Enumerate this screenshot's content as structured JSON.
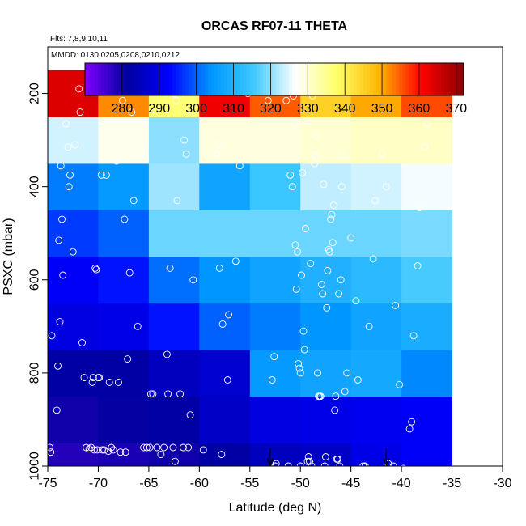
{
  "chart_data": {
    "type": "heatmap",
    "title": "ORCAS RF07-11 THETA",
    "flights_note": "Flts: 7,8,9,10,11",
    "dates_note": "MMDD: 0130,0205,0208,0210,0212",
    "xlabel": "Latitude (deg N)",
    "ylabel": "PSXC (mbar)",
    "xlim": [
      -75,
      -30
    ],
    "ylim": [
      1000,
      100
    ],
    "x_ticks": [
      -75,
      -70,
      -65,
      -60,
      -55,
      -50,
      -45,
      -40,
      -35,
      -30
    ],
    "y_ticks": [
      200,
      400,
      600,
      800,
      1000
    ],
    "colorbar": {
      "range": [
        270,
        372
      ],
      "ticks": [
        280,
        290,
        300,
        310,
        320,
        330,
        340,
        350,
        360,
        370
      ],
      "colors": [
        "#7f00ff",
        "#00009f",
        "#0000ff",
        "#0096ff",
        "#3cc8ff",
        "#ffffff",
        "#ffff66",
        "#ffb400",
        "#ff0000",
        "#8b0000"
      ]
    },
    "lat_bins": [
      -75,
      -70,
      -65,
      -60,
      -55,
      -50,
      -45,
      -40,
      -35
    ],
    "pressure_bins": [
      1000,
      950,
      850,
      750,
      650,
      550,
      450,
      350,
      250,
      150
    ],
    "cells": [
      [
        278,
        279,
        280,
        282,
        285,
        286,
        290,
        292
      ],
      [
        280,
        281,
        282,
        286,
        289,
        290,
        291,
        292
      ],
      [
        282,
        282,
        285,
        287,
        305,
        307,
        308,
        303
      ],
      [
        289,
        290,
        294,
        300,
        302,
        304,
        307,
        309
      ],
      [
        292,
        294,
        301,
        304,
        307,
        310,
        312,
        316
      ],
      [
        297,
        300,
        318,
        318,
        318,
        318,
        318,
        319
      ],
      [
        302,
        305,
        321,
        307,
        315,
        323,
        324,
        326
      ],
      [
        324,
        328,
        320,
        329,
        329,
        330,
        331,
        331
      ],
      [
        364,
        352,
        337,
        362,
        355,
        345,
        350,
        356
      ]
    ],
    "points": [
      [
        -74.8,
        960
      ],
      [
        -74.7,
        970
      ],
      [
        -74.6,
        720
      ],
      [
        -74.1,
        880
      ],
      [
        -74.0,
        785
      ],
      [
        -73.9,
        515
      ],
      [
        -73.8,
        690
      ],
      [
        -73.7,
        355
      ],
      [
        -73.6,
        470
      ],
      [
        -73.5,
        590
      ],
      [
        -73.2,
        265
      ],
      [
        -73.0,
        315
      ],
      [
        -72.8,
        375
      ],
      [
        -72.9,
        400
      ],
      [
        -72.5,
        540
      ],
      [
        -72.3,
        310
      ],
      [
        -71.9,
        190
      ],
      [
        -71.8,
        240
      ],
      [
        -71.6,
        735
      ],
      [
        -71.4,
        810
      ],
      [
        -71.2,
        960
      ],
      [
        -70.9,
        963
      ],
      [
        -70.7,
        960
      ],
      [
        -70.6,
        820
      ],
      [
        -70.5,
        810
      ],
      [
        -70.4,
        965
      ],
      [
        -70.3,
        575
      ],
      [
        -70.2,
        578
      ],
      [
        -70.1,
        965
      ],
      [
        -70.0,
        810
      ],
      [
        -69.9,
        810
      ],
      [
        -69.7,
        375
      ],
      [
        -69.6,
        965
      ],
      [
        -69.4,
        965
      ],
      [
        -69.2,
        375
      ],
      [
        -69.0,
        968
      ],
      [
        -68.9,
        820
      ],
      [
        -68.7,
        960
      ],
      [
        -68.5,
        965
      ],
      [
        -68.2,
        345
      ],
      [
        -68.0,
        820
      ],
      [
        -67.8,
        970
      ],
      [
        -67.6,
        215
      ],
      [
        -67.4,
        470
      ],
      [
        -67.3,
        970
      ],
      [
        -67.1,
        770
      ],
      [
        -66.9,
        585
      ],
      [
        -66.7,
        240
      ],
      [
        -66.5,
        430
      ],
      [
        -66.1,
        700
      ],
      [
        -65.8,
        330
      ],
      [
        -65.5,
        960
      ],
      [
        -65.2,
        960
      ],
      [
        -64.9,
        960
      ],
      [
        -65.0,
        180
      ],
      [
        -64.8,
        845
      ],
      [
        -64.6,
        845
      ],
      [
        -64.2,
        960
      ],
      [
        -63.8,
        975
      ],
      [
        -63.5,
        960
      ],
      [
        -63.2,
        760
      ],
      [
        -62.9,
        575
      ],
      [
        -63.1,
        845
      ],
      [
        -62.6,
        960
      ],
      [
        -62.4,
        990
      ],
      [
        -62.2,
        430
      ],
      [
        -62.5,
        200
      ],
      [
        -62.3,
        215
      ],
      [
        -61.9,
        845
      ],
      [
        -61.6,
        960
      ],
      [
        -61.5,
        300
      ],
      [
        -61.3,
        330
      ],
      [
        -61.1,
        960
      ],
      [
        -60.9,
        890
      ],
      [
        -60.6,
        600
      ],
      [
        -59.6,
        965
      ],
      [
        -59.4,
        190
      ],
      [
        -59.3,
        190
      ],
      [
        -58.3,
        330
      ],
      [
        -58.1,
        310
      ],
      [
        -58.0,
        575
      ],
      [
        -57.8,
        975
      ],
      [
        -57.7,
        695
      ],
      [
        -57.3,
        190
      ],
      [
        -57.2,
        815
      ],
      [
        -57.1,
        675
      ],
      [
        -57.0,
        190
      ],
      [
        -56.9,
        190
      ],
      [
        -56.7,
        185
      ],
      [
        -56.4,
        560
      ],
      [
        -56.0,
        355
      ],
      [
        -55.2,
        200
      ],
      [
        -53.4,
        190
      ],
      [
        -53.2,
        215
      ],
      [
        -52.8,
        815
      ],
      [
        -52.6,
        765
      ],
      [
        -52.5,
        1000
      ],
      [
        -52.4,
        995
      ],
      [
        -51.6,
        190
      ],
      [
        -51.4,
        215
      ],
      [
        -51.1,
        180
      ],
      [
        -51.2,
        1000
      ],
      [
        -51.0,
        375
      ],
      [
        -50.8,
        400
      ],
      [
        -50.9,
        185
      ],
      [
        -50.7,
        205
      ],
      [
        -50.6,
        265
      ],
      [
        -50.5,
        525
      ],
      [
        -50.4,
        620
      ],
      [
        -50.3,
        540
      ],
      [
        -50.2,
        780
      ],
      [
        -50.1,
        790
      ],
      [
        -50.0,
        800
      ],
      [
        -50.0,
        1000
      ],
      [
        -49.9,
        590
      ],
      [
        -49.8,
        370
      ],
      [
        -49.7,
        710
      ],
      [
        -49.6,
        750
      ],
      [
        -49.5,
        490
      ],
      [
        -49.4,
        260
      ],
      [
        -49.3,
        990
      ],
      [
        -49.2,
        980
      ],
      [
        -49.1,
        990
      ],
      [
        -49.0,
        565
      ],
      [
        -48.9,
        1000
      ],
      [
        -48.8,
        205
      ],
      [
        -48.7,
        330
      ],
      [
        -48.6,
        350
      ],
      [
        -48.5,
        290
      ],
      [
        -48.4,
        335
      ],
      [
        -48.3,
        800
      ],
      [
        -48.2,
        850
      ],
      [
        -48.1,
        850
      ],
      [
        -48.0,
        850
      ],
      [
        -47.9,
        610
      ],
      [
        -47.8,
        630
      ],
      [
        -47.7,
        395
      ],
      [
        -47.6,
        1000
      ],
      [
        -47.5,
        980
      ],
      [
        -47.4,
        660
      ],
      [
        -47.3,
        580
      ],
      [
        -47.2,
        535
      ],
      [
        -47.1,
        540
      ],
      [
        -47.0,
        470
      ],
      [
        -46.9,
        460
      ],
      [
        -46.8,
        520
      ],
      [
        -46.7,
        440
      ],
      [
        -46.6,
        880
      ],
      [
        -46.5,
        850
      ],
      [
        -46.4,
        985
      ],
      [
        -46.3,
        985
      ],
      [
        -46.2,
        630
      ],
      [
        -46.1,
        1000
      ],
      [
        -46.0,
        600
      ],
      [
        -45.9,
        400
      ],
      [
        -45.8,
        330
      ],
      [
        -45.6,
        840
      ],
      [
        -45.4,
        800
      ],
      [
        -45.0,
        510
      ],
      [
        -44.5,
        645
      ],
      [
        -44.3,
        815
      ],
      [
        -43.8,
        1000
      ],
      [
        -43.6,
        1000
      ],
      [
        -43.2,
        700
      ],
      [
        -42.8,
        555
      ],
      [
        -42.6,
        430
      ],
      [
        -41.9,
        330
      ],
      [
        -41.5,
        400
      ],
      [
        -41.3,
        995
      ],
      [
        -40.8,
        1000
      ],
      [
        -40.6,
        655
      ],
      [
        -40.4,
        190
      ],
      [
        -40.2,
        825
      ],
      [
        -39.8,
        1005
      ],
      [
        -39.4,
        190
      ],
      [
        -39.2,
        920
      ],
      [
        -39.0,
        905
      ],
      [
        -38.8,
        720
      ],
      [
        -38.6,
        190
      ],
      [
        -38.4,
        570
      ],
      [
        -38.2,
        445
      ],
      [
        -37.9,
        190
      ],
      [
        -37.7,
        315
      ],
      [
        -37.5,
        265
      ],
      [
        -37.3,
        190
      ],
      [
        -36.9,
        190
      ],
      [
        -36.5,
        190
      ],
      [
        -36.1,
        190
      ],
      [
        -35.7,
        190
      ],
      [
        -35.3,
        190
      ],
      [
        -35.1,
        190
      ]
    ],
    "markers": [
      {
        "lat": -53.0,
        "symbol": "down-arrow"
      },
      {
        "lat": -41.5,
        "symbol": "down-arrow"
      }
    ]
  }
}
